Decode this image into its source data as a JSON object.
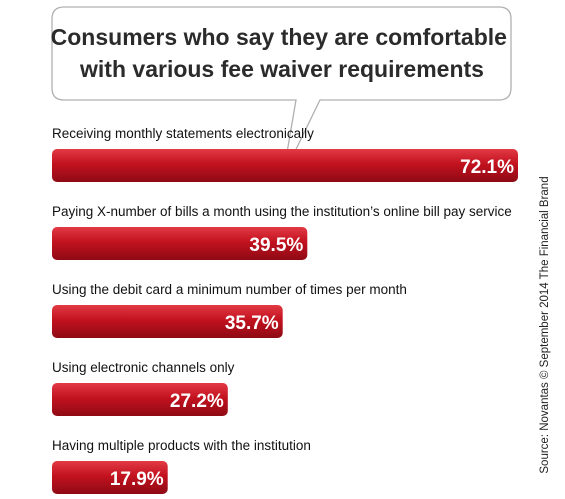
{
  "chart_data": {
    "type": "bar",
    "orientation": "horizontal",
    "title": "Consumers who say they are comfortable with various fee waiver requirements",
    "title_lines": [
      "Consumers who say they are comfortable",
      "with various fee waiver requirements"
    ],
    "categories": [
      "Receiving monthly statements electronically",
      "Paying X-number of bills a month using the institution’s online bill pay service",
      "Using the debit card a minimum number of times per month",
      "Using electronic channels only",
      "Having multiple products with the institution"
    ],
    "values": [
      72.1,
      39.5,
      35.7,
      27.2,
      17.9
    ],
    "value_labels": [
      "72.1%",
      "39.5%",
      "35.7%",
      "27.2%",
      "17.9%"
    ],
    "unit": "%",
    "xlim": [
      0,
      72.1
    ],
    "grid": false,
    "legend": "none",
    "bar_color": "#c2121f",
    "bar_color_light": "#e23a44",
    "bar_color_dark": "#8e0a14"
  },
  "source": "Source: Novantas © September 2014 The Financial Brand"
}
